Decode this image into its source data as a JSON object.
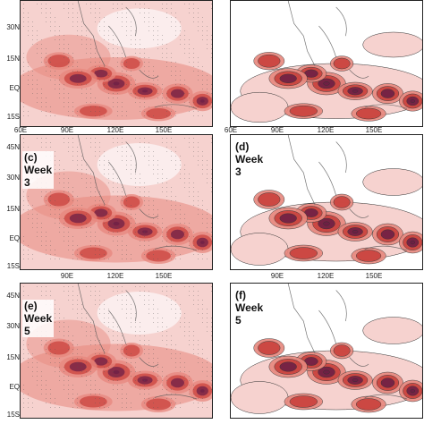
{
  "latitude_ticks": [
    "45N",
    "30N",
    "15N",
    "EQ",
    "15S"
  ],
  "longitude_ticks": [
    "60E",
    "90E",
    "120E",
    "150E"
  ],
  "colors": {
    "shade_low": "#f6d2cf",
    "shade_mid": "#e7877d",
    "shade_high": "#c9413c",
    "shade_peak": "#6e1f45",
    "coast": "#555555"
  },
  "panels": [
    {
      "id": "a",
      "label": "",
      "style": "stippled"
    },
    {
      "id": "b",
      "label": "",
      "style": "contoured"
    },
    {
      "id": "c",
      "label": "(c) Week 3",
      "style": "stippled"
    },
    {
      "id": "d",
      "label": "(d) Week 3",
      "style": "contoured"
    },
    {
      "id": "e",
      "label": "(e) Week 5",
      "style": "stippled"
    },
    {
      "id": "f",
      "label": "(f) Week 5",
      "style": "contoured"
    }
  ]
}
